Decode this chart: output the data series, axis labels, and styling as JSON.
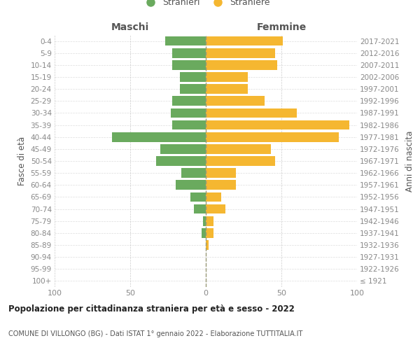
{
  "age_groups": [
    "100+",
    "95-99",
    "90-94",
    "85-89",
    "80-84",
    "75-79",
    "70-74",
    "65-69",
    "60-64",
    "55-59",
    "50-54",
    "45-49",
    "40-44",
    "35-39",
    "30-34",
    "25-29",
    "20-24",
    "15-19",
    "10-14",
    "5-9",
    "0-4"
  ],
  "birth_years": [
    "≤ 1921",
    "1922-1926",
    "1927-1931",
    "1932-1936",
    "1937-1941",
    "1942-1946",
    "1947-1951",
    "1952-1956",
    "1957-1961",
    "1962-1966",
    "1967-1971",
    "1972-1976",
    "1977-1981",
    "1982-1986",
    "1987-1991",
    "1992-1996",
    "1997-2001",
    "2002-2006",
    "2007-2011",
    "2012-2016",
    "2017-2021"
  ],
  "maschi": [
    0,
    0,
    0,
    0,
    3,
    2,
    8,
    10,
    20,
    16,
    33,
    30,
    62,
    22,
    23,
    22,
    17,
    17,
    22,
    22,
    27
  ],
  "femmine": [
    0,
    0,
    0,
    2,
    5,
    5,
    13,
    10,
    20,
    20,
    46,
    43,
    88,
    95,
    60,
    39,
    28,
    28,
    47,
    46,
    51
  ],
  "maschi_color": "#6aaa5e",
  "femmine_color": "#f5b731",
  "title": "Popolazione per cittadinanza straniera per età e sesso - 2022",
  "subtitle": "COMUNE DI VILLONGO (BG) - Dati ISTAT 1° gennaio 2022 - Elaborazione TUTTITALIA.IT",
  "ylabel_left": "Fasce di età",
  "ylabel_right": "Anni di nascita",
  "xlabel_left": "Maschi",
  "xlabel_right": "Femmine",
  "legend_maschi": "Stranieri",
  "legend_femmine": "Straniere",
  "xlim": 100,
  "background_color": "#ffffff",
  "grid_color": "#cccccc",
  "grid_color_y": "#dddddd",
  "axis_label_color": "#555555",
  "tick_color": "#888888",
  "center_line_color": "#999977"
}
